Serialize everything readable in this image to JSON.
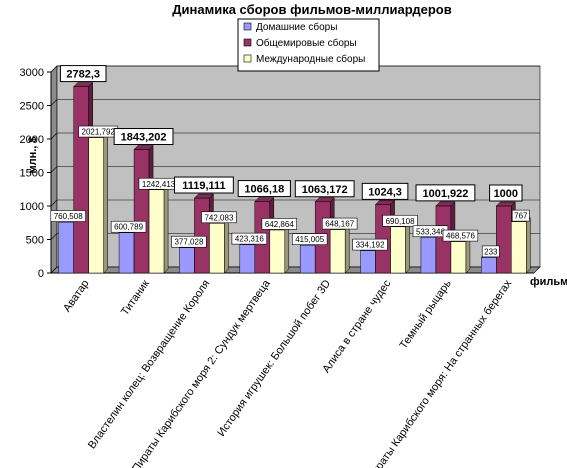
{
  "chart_data": {
    "type": "bar",
    "title": "Динамика сборов фильмов-миллиардеров",
    "xlabel": "фильмы",
    "ylabel": "млн., $",
    "ylim": [
      0,
      3000
    ],
    "yticks": [
      "0",
      "500",
      "1000",
      "1500",
      "2000",
      "2500",
      "3000"
    ],
    "grid": true,
    "legend_position": "top-right",
    "categories": [
      "Аватар",
      "Титаник",
      "Властелин колец: Возвращение Короля",
      "Пираты Карибского моря 2: Сундук мертвеца",
      "История игрушек: Большой побег 3D",
      "Алиса в стране чудес",
      "Темный рыцарь",
      "Пираты Карибского моря: На странных берегах"
    ],
    "series": [
      {
        "name": "Домашние сборы",
        "color": "#9999ff",
        "values": [
          760.508,
          600.789,
          377.028,
          423.316,
          415.005,
          334.192,
          533.346,
          233
        ],
        "labels": [
          "760,508",
          "600,789",
          "377,028",
          "423,316",
          "415,005",
          "334,192",
          "533,346",
          "233"
        ]
      },
      {
        "name": "Общемировые сборы",
        "color": "#993366",
        "values": [
          2782.3,
          1843.202,
          1119.111,
          1066.18,
          1063.172,
          1024.3,
          1001.922,
          1000
        ],
        "labels": [
          "2782,3",
          "1843,202",
          "1119,111",
          "1066,18",
          "1063,172",
          "1024,3",
          "1001,922",
          "1000"
        ]
      },
      {
        "name": "Международные сборы",
        "color": "#ffffcc",
        "values": [
          2021.792,
          1242.413,
          742.083,
          642.864,
          648.167,
          690.108,
          468.576,
          767
        ],
        "labels": [
          "2021,792",
          "1242,413",
          "742,083",
          "642,864",
          "648,167",
          "690,108",
          "468,576",
          "767"
        ]
      }
    ]
  }
}
